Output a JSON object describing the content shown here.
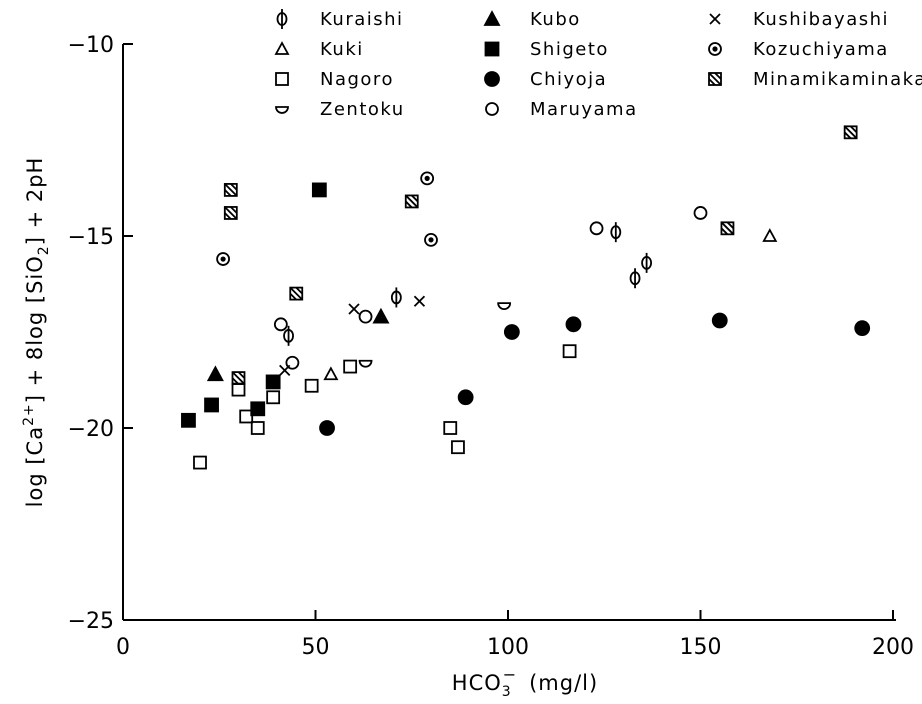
{
  "chart_data": {
    "type": "scatter",
    "title": "",
    "xlabel": "HCO3- (mg/l)",
    "ylabel": "log [Ca2+] + 8log [SiO2] + 2pH",
    "xlim": [
      0,
      200
    ],
    "ylim": [
      -25,
      -10
    ],
    "x_ticks": [
      0,
      50,
      100,
      150,
      200
    ],
    "x_tick_labels": [
      "0",
      "50",
      "100",
      "150",
      "200"
    ],
    "y_ticks": [
      -10,
      -15,
      -20,
      -25
    ],
    "y_tick_labels": [
      "-10",
      "-15",
      "-20",
      "-25"
    ],
    "grid": false,
    "legend_position": "top",
    "series": [
      {
        "name": "Kuraishi",
        "marker": "phi",
        "points": [
          [
            43,
            -17.6
          ],
          [
            71,
            -16.6
          ],
          [
            128,
            -14.9
          ],
          [
            133,
            -16.1
          ],
          [
            136,
            -15.7
          ]
        ]
      },
      {
        "name": "Kuki",
        "marker": "triangle-open",
        "points": [
          [
            54,
            -18.6
          ],
          [
            168,
            -15.0
          ]
        ]
      },
      {
        "name": "Nagoro",
        "marker": "square-open",
        "points": [
          [
            20,
            -20.9
          ],
          [
            30,
            -19.0
          ],
          [
            32,
            -19.7
          ],
          [
            35,
            -20.0
          ],
          [
            39,
            -19.2
          ],
          [
            49,
            -18.9
          ],
          [
            59,
            -18.4
          ],
          [
            85,
            -20.0
          ],
          [
            87,
            -20.5
          ],
          [
            116,
            -18.0
          ]
        ]
      },
      {
        "name": "Zentoku",
        "marker": "half-circle",
        "points": [
          [
            63,
            -18.3
          ],
          [
            99,
            -16.8
          ]
        ]
      },
      {
        "name": "Kubo",
        "marker": "triangle-filled",
        "points": [
          [
            24,
            -18.6
          ],
          [
            67,
            -17.1
          ]
        ]
      },
      {
        "name": "Shigeto",
        "marker": "square-filled",
        "points": [
          [
            17,
            -19.8
          ],
          [
            23,
            -19.4
          ],
          [
            35,
            -19.5
          ],
          [
            39,
            -18.8
          ],
          [
            51,
            -13.8
          ]
        ]
      },
      {
        "name": "Chiyoja",
        "marker": "circle-filled",
        "points": [
          [
            53,
            -20.0
          ],
          [
            89,
            -19.2
          ],
          [
            101,
            -17.5
          ],
          [
            117,
            -17.3
          ],
          [
            155,
            -17.2
          ],
          [
            192,
            -17.4
          ]
        ]
      },
      {
        "name": "Maruyama",
        "marker": "circle-open",
        "points": [
          [
            41,
            -17.3
          ],
          [
            44,
            -18.3
          ],
          [
            63,
            -17.1
          ],
          [
            123,
            -14.8
          ],
          [
            150,
            -14.4
          ]
        ]
      },
      {
        "name": "Kushibayashi",
        "marker": "cross",
        "points": [
          [
            42,
            -18.5
          ],
          [
            60,
            -16.9
          ],
          [
            77,
            -16.7
          ]
        ]
      },
      {
        "name": "Kozuchiyama",
        "marker": "circle-dot",
        "points": [
          [
            26,
            -15.6
          ],
          [
            79,
            -13.5
          ],
          [
            80,
            -15.1
          ]
        ]
      },
      {
        "name": "Minamikaminaka",
        "marker": "square-hatched",
        "points": [
          [
            28,
            -13.8
          ],
          [
            28,
            -14.4
          ],
          [
            30,
            -18.7
          ],
          [
            45,
            -16.5
          ],
          [
            75,
            -14.1
          ],
          [
            157,
            -14.8
          ],
          [
            189,
            -12.3
          ]
        ]
      }
    ]
  }
}
